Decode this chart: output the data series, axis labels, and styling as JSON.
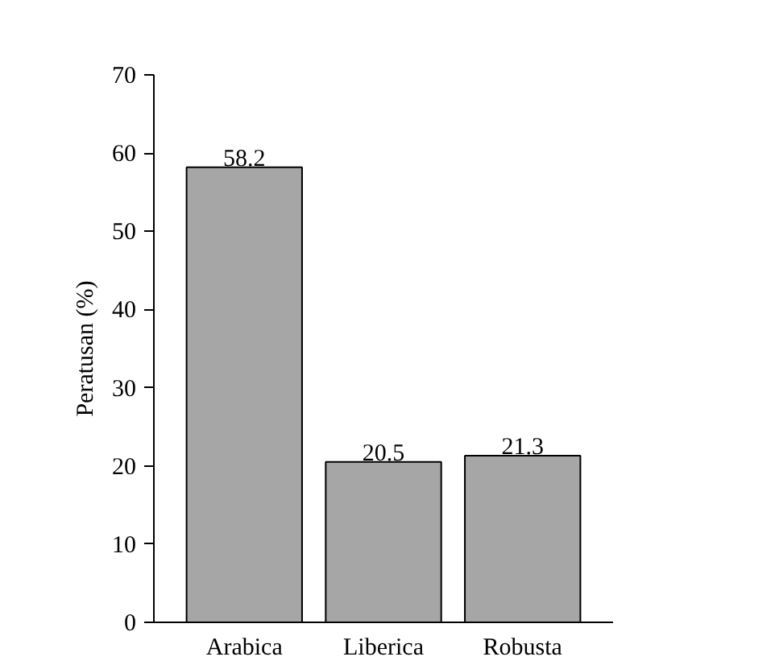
{
  "chart_data": {
    "type": "bar",
    "ylabel": "Peratusan (%)",
    "categories": [
      "Arabica",
      "Liberica",
      "Robusta"
    ],
    "values": [
      58.2,
      20.5,
      21.3
    ],
    "color": "#a6a6a6",
    "ylim": [
      0,
      70
    ],
    "yticks": [
      0,
      10,
      20,
      30,
      40,
      50,
      60,
      70
    ],
    "data_labels": true
  }
}
